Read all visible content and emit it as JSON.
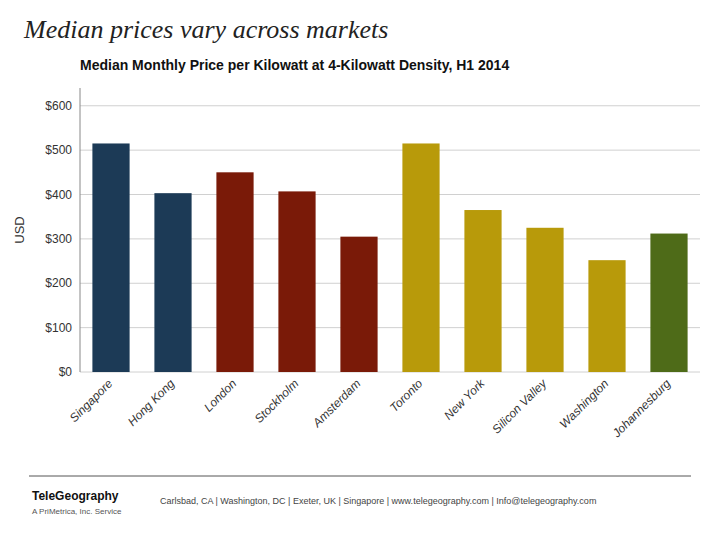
{
  "chart_data": {
    "type": "bar",
    "title": "Median prices vary across markets",
    "subtitle": "Median Monthly Price per Kilowatt at 4-Kilowatt Density, H1 2014",
    "ylabel": "USD",
    "categories": [
      "Singapore",
      "Hong Kong",
      "London",
      "Stockholm",
      "Amsterdam",
      "Toronto",
      "New York",
      "Silicon Valley",
      "Washington",
      "Johannesburg"
    ],
    "values": [
      515,
      403,
      450,
      407,
      305,
      515,
      365,
      325,
      252,
      312
    ],
    "colors": [
      "#1c3a56",
      "#1c3a56",
      "#7a1a08",
      "#7a1a08",
      "#7a1a08",
      "#b89a0a",
      "#b89a0a",
      "#b89a0a",
      "#b89a0a",
      "#4e6b18"
    ],
    "ylim": [
      0,
      640
    ],
    "yticks": [
      {
        "value": 0,
        "label": "$0"
      },
      {
        "value": 100,
        "label": "$100"
      },
      {
        "value": 200,
        "label": "$200"
      },
      {
        "value": 300,
        "label": "$300"
      },
      {
        "value": 400,
        "label": "$400"
      },
      {
        "value": 500,
        "label": "$500"
      },
      {
        "value": 600,
        "label": "$600"
      }
    ],
    "grid": true,
    "annotations": [
      "TeleGeography",
      "A PriMetrica, Inc. Service",
      "Carlsbad, CA | Washington, DC | Exeter, UK | Singapore | www.telegeography.com | Info@telegeography.com"
    ]
  }
}
